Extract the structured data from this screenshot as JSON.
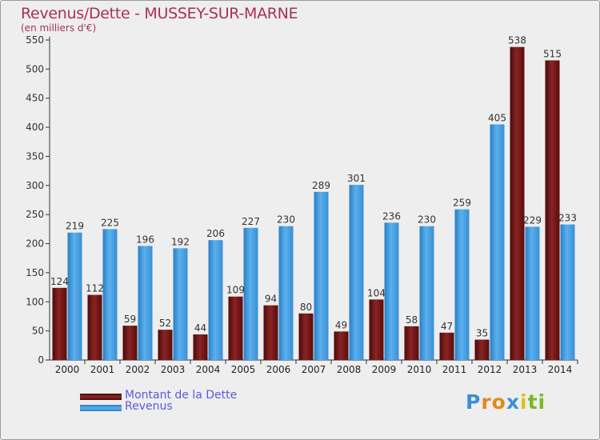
{
  "header": {
    "title": "Revenus/Dette - MUSSEY-SUR-MARNE",
    "subtitle": "(en milliers d'€)"
  },
  "chart_data": {
    "type": "bar",
    "title": "Revenus/Dette - MUSSEY-SUR-MARNE",
    "ylabel": "(en milliers d'€)",
    "xlabel": "",
    "categories": [
      "2000",
      "2001",
      "2002",
      "2003",
      "2004",
      "2005",
      "2006",
      "2007",
      "2008",
      "2009",
      "2010",
      "2011",
      "2012",
      "2013",
      "2014"
    ],
    "series": [
      {
        "name": "Montant de la Dette",
        "color": "#7a1414",
        "values": [
          124,
          112,
          59,
          52,
          44,
          109,
          94,
          80,
          49,
          104,
          58,
          47,
          35,
          538,
          515
        ]
      },
      {
        "name": "Revenus",
        "color": "#3d9ae0",
        "values": [
          219,
          225,
          196,
          192,
          206,
          227,
          230,
          289,
          301,
          236,
          230,
          259,
          405,
          229,
          233
        ]
      }
    ],
    "yticks": [
      0,
      50,
      100,
      150,
      200,
      250,
      300,
      350,
      400,
      450,
      500,
      550
    ],
    "ylim": [
      0,
      550
    ],
    "grid": false,
    "legend_position": "bottom-left"
  },
  "legend": {
    "items": [
      {
        "label": "Montant de la Dette",
        "color": "#7a1414"
      },
      {
        "label": "Revenus",
        "color": "#3d9ae0"
      }
    ]
  },
  "brand": {
    "letters": [
      "P",
      "r",
      "o",
      "x",
      "i",
      "t",
      "i"
    ],
    "colors": [
      "#3a8fd8",
      "#e08a1e",
      "#e08a1e",
      "#3a8fd8",
      "#e0c01e",
      "#7ab828",
      "#7ab828"
    ]
  }
}
